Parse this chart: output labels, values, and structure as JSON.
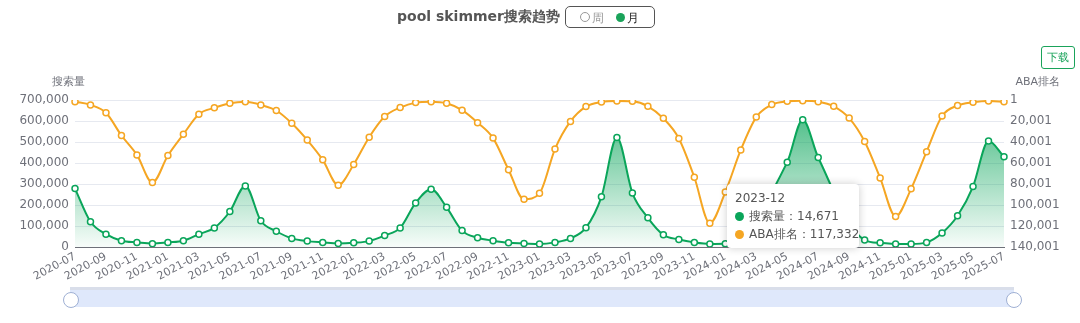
{
  "chart_data": {
    "type": "area",
    "title": "pool skimmer搜索趋势",
    "ylabel": "搜索量",
    "y2label": "ABA排名",
    "annotations": [
      "周",
      "月",
      "下载",
      "2023-12",
      "搜索量：14,671",
      "ABA排名：117,332"
    ],
    "categories": [
      "2020-07",
      null,
      "2020-09",
      null,
      "2020-11",
      null,
      "2021-01",
      null,
      "2021-03",
      null,
      "2021-05",
      null,
      "2021-07",
      null,
      "2021-09",
      null,
      "2021-11",
      null,
      "2022-01",
      null,
      "2022-03",
      null,
      "2022-05",
      null,
      "2022-07",
      null,
      "2022-09",
      null,
      "2022-11",
      null,
      "2023-01",
      null,
      "2023-03",
      null,
      "2023-05",
      null,
      "2023-07",
      null,
      "2023-09",
      null,
      "2023-11",
      null,
      "2024-01",
      null,
      "2024-03",
      null,
      "2024-05",
      null,
      "2024-07",
      null,
      "2024-09",
      null,
      "2024-11",
      null,
      "2025-01",
      null,
      "2025-03",
      null,
      "2025-05",
      null,
      "2025-07"
    ],
    "series": [
      {
        "type": "area",
        "color": "#0aa55a",
        "values": [
          278000,
          120000,
          61000,
          30000,
          22000,
          16000,
          22000,
          30000,
          61000,
          91000,
          169000,
          291000,
          125000,
          75000,
          41000,
          28000,
          22000,
          17000,
          20000,
          28000,
          55000,
          91000,
          210000,
          275000,
          189000,
          78000,
          44000,
          30000,
          20000,
          17000,
          14000,
          22000,
          41000,
          92000,
          239000,
          521000,
          257000,
          139000,
          58000,
          36000,
          22000,
          14671,
          15000,
          null,
          null,
          null,
          404000,
          606000,
          426000,
          null,
          null,
          33000,
          20000,
          14000,
          14000,
          22000,
          67000,
          149000,
          288000,
          505000,
          430000
        ]
      },
      {
        "type": "line",
        "axis": "y2",
        "color": "#f5a623",
        "values": [
          1600,
          4700,
          12200,
          33800,
          52300,
          78600,
          52900,
          32600,
          13500,
          7500,
          3100,
          1600,
          4700,
          10000,
          22200,
          38200,
          57000,
          81100,
          61400,
          35400,
          15700,
          7200,
          2500,
          1600,
          3100,
          9700,
          21600,
          36300,
          66400,
          94600,
          88900,
          46700,
          20400,
          6300,
          1900,
          900,
          1300,
          6000,
          17500,
          36600,
          73600,
          117332,
          87700,
          47600,
          16300,
          4400,
          1300,
          700,
          1600,
          6000,
          17200,
          39500,
          74200,
          110900,
          84600,
          49200,
          15300,
          5300,
          2200,
          900,
          1600
        ]
      }
    ],
    "ylim": [
      0,
      700000
    ],
    "yticks": [
      0,
      {
        "value": 100000,
        "label": "100,000"
      },
      {
        "value": 200000,
        "label": "200,000"
      },
      {
        "value": 300000,
        "label": "300,000"
      },
      {
        "value": 400000,
        "label": "400,000"
      },
      {
        "value": 500000,
        "label": "500,000"
      },
      {
        "value": 600000,
        "label": "600,000"
      },
      {
        "value": 700000,
        "label": "700,000"
      }
    ],
    "y2lim": [
      140001,
      1
    ],
    "y2ticks": [
      1,
      {
        "value": 20001,
        "label": "20,001"
      },
      {
        "value": 40001,
        "label": "40,001"
      },
      {
        "value": 60001,
        "label": "60,001"
      },
      {
        "value": 80001,
        "label": "80,001"
      },
      {
        "value": 100001,
        "label": "100,001"
      },
      {
        "value": 120001,
        "label": "120,001"
      },
      {
        "value": 140001,
        "label": "140,001"
      }
    ],
    "grid": "y",
    "legend": false,
    "marker": "circle",
    "line_style": "solid"
  }
}
